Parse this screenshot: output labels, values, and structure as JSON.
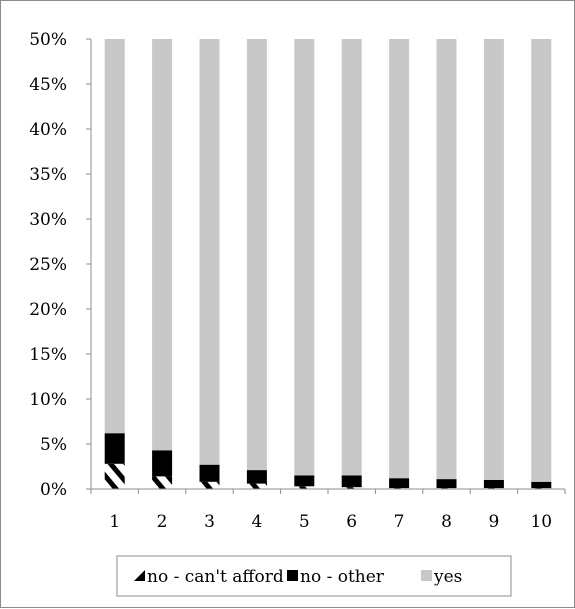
{
  "chart_data": {
    "type": "bar",
    "stacked": true,
    "title": "",
    "xlabel": "",
    "ylabel": "",
    "categories": [
      "1",
      "2",
      "3",
      "4",
      "5",
      "6",
      "7",
      "8",
      "9",
      "10"
    ],
    "series": [
      {
        "name": "no - can't afford",
        "values": [
          2.8,
          1.4,
          0.8,
          0.6,
          0.3,
          0.2,
          0.1,
          0.1,
          0.1,
          0.1
        ],
        "color": "#ffffff",
        "pattern": "diagonal-black"
      },
      {
        "name": "no - other",
        "values": [
          3.4,
          2.9,
          1.9,
          1.5,
          1.2,
          1.3,
          1.1,
          1.0,
          0.9,
          0.7
        ],
        "color": "#000000"
      },
      {
        "name": "yes",
        "values": [
          43.8,
          45.7,
          47.3,
          47.9,
          48.5,
          48.5,
          48.8,
          48.9,
          49.0,
          49.2
        ],
        "color": "#c8c8c8"
      }
    ],
    "ylim": [
      0,
      50
    ],
    "yticks": [
      "0%",
      "5%",
      "10%",
      "15%",
      "20%",
      "25%",
      "30%",
      "35%",
      "40%",
      "45%",
      "50%"
    ],
    "ytick_values": [
      0,
      5,
      10,
      15,
      20,
      25,
      30,
      35,
      40,
      45,
      50
    ],
    "y_unit": "%",
    "grid": false,
    "legend_position": "bottom"
  }
}
